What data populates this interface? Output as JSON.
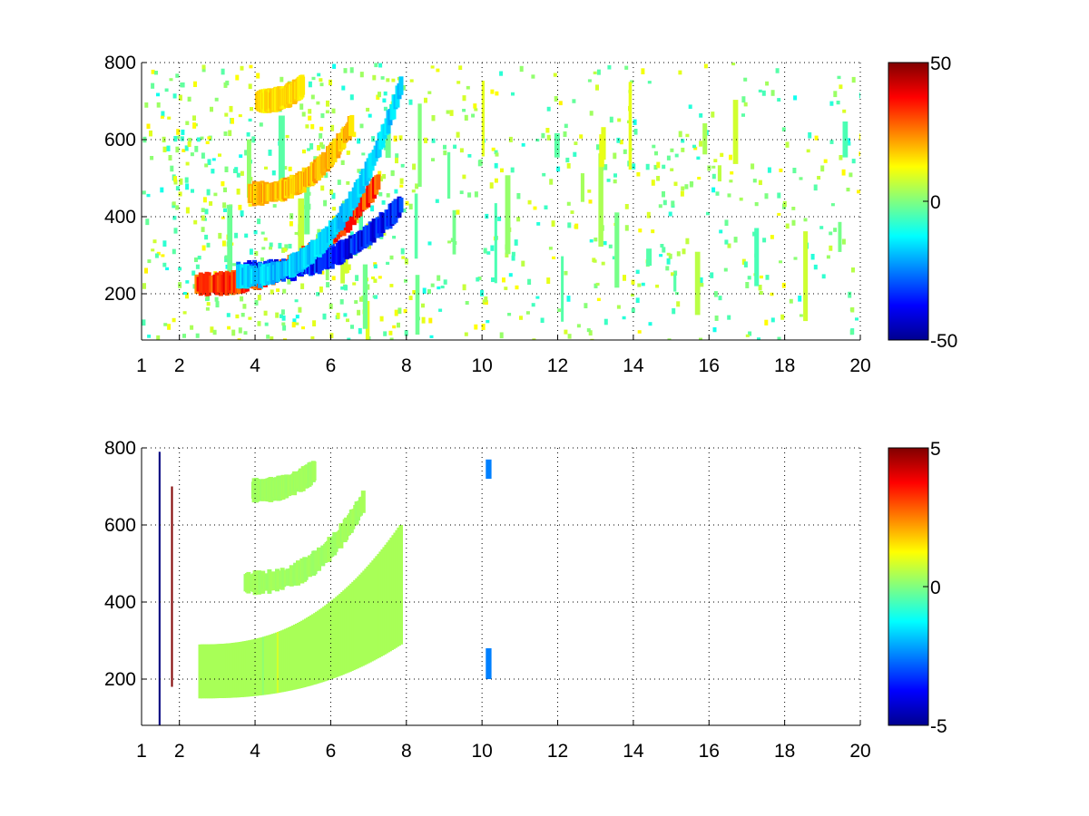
{
  "chart_data": [
    {
      "type": "heatmap",
      "title": "",
      "xlabel": "",
      "ylabel": "",
      "xlim": [
        1,
        20
      ],
      "ylim": [
        80,
        800
      ],
      "x_ticks": [
        1,
        2,
        4,
        6,
        8,
        10,
        12,
        14,
        16,
        18,
        20
      ],
      "y_ticks": [
        200,
        400,
        600,
        800
      ],
      "grid": true,
      "colormap": "jet",
      "colorbar": {
        "min": -50,
        "max": 50,
        "ticks": [
          50,
          0,
          -50
        ]
      },
      "features": [
        {
          "kind": "curve",
          "value": 40,
          "x_range": [
            2.4,
            7.2
          ],
          "y_start": 225,
          "y_end": 490
        },
        {
          "kind": "curve",
          "value": -45,
          "x_range": [
            3.5,
            7.8
          ],
          "y_start": 255,
          "y_end": 430
        },
        {
          "kind": "curve",
          "value": -22,
          "x_range": [
            3.5,
            7.8
          ],
          "y_start": 245,
          "y_end": 740
        },
        {
          "kind": "curve",
          "value": 24,
          "x_range": [
            3.8,
            6.5
          ],
          "y_start": 460,
          "y_end": 640
        },
        {
          "kind": "curve",
          "value": 20,
          "x_range": [
            4.0,
            5.2
          ],
          "y_start": 700,
          "y_end": 740
        }
      ]
    },
    {
      "type": "heatmap",
      "title": "",
      "xlabel": "",
      "ylabel": "",
      "xlim": [
        1,
        20
      ],
      "ylim": [
        80,
        800
      ],
      "x_ticks": [
        1,
        2,
        4,
        6,
        8,
        10,
        12,
        14,
        16,
        18,
        20
      ],
      "y_ticks": [
        200,
        400,
        600,
        800
      ],
      "grid": true,
      "colormap": "jet",
      "colorbar": {
        "min": -5,
        "max": 5,
        "ticks": [
          5,
          0,
          -5
        ]
      },
      "features": [
        {
          "kind": "band",
          "value": 0.4,
          "x_range": [
            2.5,
            7.8
          ],
          "y_low_start": 150,
          "y_high_start": 290,
          "y_low_end": 290,
          "y_high_end": 600
        },
        {
          "kind": "curve",
          "value": 0.4,
          "x_range": [
            3.7,
            6.8
          ],
          "y_start": 450,
          "y_end": 660
        },
        {
          "kind": "curve",
          "value": 0.4,
          "x_range": [
            3.9,
            5.5
          ],
          "y_start": 690,
          "y_end": 740
        },
        {
          "kind": "streak",
          "value": -5,
          "x_range": [
            1.45,
            1.5
          ],
          "y_range": [
            80,
            790
          ]
        },
        {
          "kind": "streak",
          "value": 5,
          "x_range": [
            1.78,
            1.82
          ],
          "y_range": [
            180,
            700
          ]
        },
        {
          "kind": "streak",
          "value": -2.5,
          "x_range": [
            10.1,
            10.25
          ],
          "y_range": [
            200,
            280
          ]
        },
        {
          "kind": "streak",
          "value": -2.5,
          "x_range": [
            10.1,
            10.25
          ],
          "y_range": [
            720,
            770
          ]
        }
      ]
    }
  ]
}
